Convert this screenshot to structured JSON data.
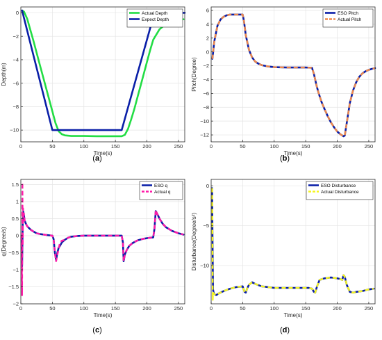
{
  "colors": {
    "green": "#22dd44",
    "blue": "#0a1fa8",
    "orange": "#f08a4b",
    "magenta": "#ff1aa8",
    "yellow": "#f5f51e",
    "axis": "#262626",
    "grid": "#e4e4e4"
  },
  "chart_data": [
    {
      "type": "line",
      "panel_label": "(a)",
      "xlabel": "Time(s)",
      "ylabel": "Depth(m)",
      "xlim": [
        0,
        260
      ],
      "ylim": [
        -11,
        0.5
      ],
      "xticks": [
        0,
        50,
        100,
        150,
        200,
        250
      ],
      "yticks": [
        0,
        -2,
        -4,
        -6,
        -8,
        -10
      ],
      "grid": true,
      "legend": "top-right",
      "series": [
        {
          "name": "Actual Depth",
          "color": "green",
          "style": "solid",
          "x": [
            2,
            5,
            10,
            20,
            30,
            40,
            50,
            55,
            60,
            65,
            70,
            80,
            100,
            120,
            140,
            160,
            165,
            170,
            175,
            180,
            185,
            190,
            195,
            200,
            205,
            210,
            220,
            230,
            240,
            250,
            258
          ],
          "y": [
            0.2,
            0.1,
            -0.5,
            -2.4,
            -4.4,
            -6.4,
            -8.4,
            -9.4,
            -10.1,
            -10.35,
            -10.45,
            -10.5,
            -10.5,
            -10.52,
            -10.52,
            -10.52,
            -10.4,
            -9.9,
            -9.1,
            -8.2,
            -7.2,
            -6.2,
            -5.2,
            -4.2,
            -3.2,
            -2.3,
            -1.4,
            -0.95,
            -0.75,
            -0.62,
            -0.55
          ]
        },
        {
          "name": "Expect Depth",
          "color": "blue",
          "style": "solid",
          "x": [
            2,
            50,
            60,
            160,
            212,
            260
          ],
          "y": [
            0.2,
            -10,
            -10,
            -10,
            0,
            0
          ]
        }
      ]
    },
    {
      "type": "line",
      "panel_label": "(b)",
      "xlabel": "Time(s)",
      "ylabel": "Pitch(Degree)",
      "xlim": [
        0,
        260
      ],
      "ylim": [
        -13,
        6.5
      ],
      "xticks": [
        0,
        50,
        100,
        150,
        200,
        250
      ],
      "yticks": [
        6,
        4,
        2,
        0,
        -2,
        -4,
        -6,
        -8,
        -10,
        -12
      ],
      "grid": true,
      "legend": "top-right",
      "series": [
        {
          "name": "ESO Pitch",
          "color": "blue",
          "style": "solid",
          "x": [
            2,
            5,
            10,
            15,
            20,
            25,
            30,
            35,
            40,
            45,
            50,
            52,
            55,
            60,
            65,
            70,
            75,
            80,
            90,
            100,
            120,
            140,
            150,
            160,
            163,
            167,
            170,
            175,
            180,
            185,
            190,
            195,
            200,
            205,
            210,
            212,
            215,
            220,
            225,
            230,
            235,
            240,
            245,
            250,
            255,
            260
          ],
          "y": [
            -1,
            1.5,
            3.8,
            4.7,
            5.1,
            5.3,
            5.4,
            5.4,
            5.4,
            5.4,
            5.4,
            4.5,
            2.4,
            0.3,
            -0.8,
            -1.4,
            -1.7,
            -1.9,
            -2.1,
            -2.2,
            -2.25,
            -2.25,
            -2.25,
            -2.3,
            -3.2,
            -4.8,
            -5.8,
            -7.2,
            -8.3,
            -9.3,
            -10.2,
            -10.9,
            -11.5,
            -11.9,
            -12.2,
            -12.1,
            -10.3,
            -7.4,
            -5.6,
            -4.4,
            -3.6,
            -3.1,
            -2.8,
            -2.6,
            -2.45,
            -2.35
          ]
        },
        {
          "name": "Actual Pitch",
          "color": "orange",
          "style": "dashed",
          "x": [
            2,
            5,
            10,
            15,
            20,
            25,
            30,
            35,
            40,
            45,
            50,
            52,
            55,
            60,
            65,
            70,
            75,
            80,
            90,
            100,
            120,
            140,
            150,
            160,
            163,
            167,
            170,
            175,
            180,
            185,
            190,
            195,
            200,
            205,
            210,
            212,
            215,
            220,
            225,
            230,
            235,
            240,
            245,
            250,
            255,
            260
          ],
          "y": [
            -1,
            1.5,
            3.8,
            4.7,
            5.1,
            5.3,
            5.4,
            5.4,
            5.4,
            5.4,
            5.4,
            4.5,
            2.4,
            0.3,
            -0.8,
            -1.4,
            -1.7,
            -1.9,
            -2.1,
            -2.2,
            -2.25,
            -2.25,
            -2.25,
            -2.3,
            -3.2,
            -4.8,
            -5.8,
            -7.2,
            -8.3,
            -9.3,
            -10.2,
            -10.9,
            -11.5,
            -11.9,
            -12.2,
            -12.1,
            -10.3,
            -7.4,
            -5.6,
            -4.4,
            -3.6,
            -3.1,
            -2.8,
            -2.6,
            -2.45,
            -2.35
          ]
        }
      ]
    },
    {
      "type": "line",
      "panel_label": "(c)",
      "xlabel": "Time(s)",
      "ylabel": "q(Degree/s)",
      "xlim": [
        0,
        260
      ],
      "ylim": [
        -2,
        1.65
      ],
      "xticks": [
        0,
        50,
        100,
        150,
        200,
        250
      ],
      "yticks": [
        1.5,
        1,
        0.5,
        0,
        -0.5,
        -1,
        -1.5,
        -2
      ],
      "grid": true,
      "legend": "top-right",
      "series": [
        {
          "name": "ESO q",
          "color": "blue",
          "style": "solid",
          "x": [
            1,
            2,
            3,
            4,
            5,
            6,
            8,
            10,
            13,
            16,
            20,
            25,
            30,
            40,
            50,
            52,
            54,
            56,
            58,
            60,
            62,
            65,
            70,
            75,
            80,
            90,
            100,
            120,
            140,
            160,
            162,
            163,
            165,
            168,
            172,
            177,
            185,
            195,
            205,
            210,
            212,
            214,
            216,
            220,
            225,
            230,
            240,
            250,
            258
          ],
          "y": [
            0,
            -0.9,
            0.4,
            0.7,
            0.6,
            0.45,
            0.35,
            0.28,
            0.22,
            0.17,
            0.12,
            0.07,
            0.05,
            0.02,
            0,
            -0.1,
            -0.5,
            -0.72,
            -0.5,
            -0.35,
            -0.3,
            -0.2,
            -0.12,
            -0.06,
            -0.03,
            -0.01,
            0,
            0,
            0,
            0,
            -0.2,
            -0.75,
            -0.55,
            -0.42,
            -0.3,
            -0.22,
            -0.14,
            -0.09,
            -0.06,
            -0.05,
            0.2,
            0.72,
            0.65,
            0.5,
            0.35,
            0.25,
            0.14,
            0.07,
            0.03
          ]
        },
        {
          "name": "Actual q",
          "color": "magenta",
          "style": "dashed",
          "x": [
            1,
            2,
            2.5,
            3,
            3.5,
            4,
            5,
            6,
            8,
            10,
            13,
            16,
            20,
            25,
            30,
            40,
            50,
            52,
            54,
            56,
            58,
            60,
            62,
            65,
            70,
            75,
            80,
            90,
            100,
            120,
            140,
            160,
            162,
            163,
            165,
            168,
            172,
            177,
            185,
            195,
            205,
            210,
            212,
            214,
            216,
            220,
            225,
            230,
            240,
            250,
            258
          ],
          "y": [
            0,
            -1.75,
            1.55,
            -0.3,
            0.8,
            0.5,
            0.65,
            0.45,
            0.35,
            0.28,
            0.22,
            0.17,
            0.12,
            0.07,
            0.05,
            0.02,
            0,
            -0.1,
            -0.5,
            -0.75,
            -0.55,
            -0.4,
            -0.2,
            -0.15,
            -0.12,
            -0.06,
            -0.03,
            -0.01,
            0,
            0,
            0,
            0,
            -0.2,
            -0.75,
            -0.55,
            -0.42,
            -0.3,
            -0.22,
            -0.14,
            -0.09,
            -0.06,
            -0.05,
            0.2,
            0.75,
            0.65,
            0.5,
            0.35,
            0.25,
            0.14,
            0.07,
            0.03
          ]
        }
      ]
    },
    {
      "type": "line",
      "panel_label": "(d)",
      "xlabel": "Time(s)",
      "ylabel": "Disturbance(Degree/s²)",
      "xlim": [
        0,
        260
      ],
      "ylim": [
        -14.8,
        0.8
      ],
      "xticks": [
        0,
        50,
        100,
        150,
        200,
        250
      ],
      "yticks": [
        0,
        -5,
        -10
      ],
      "grid": true,
      "legend": "top-right",
      "series": [
        {
          "name": "ESO Disturbance",
          "color": "blue",
          "style": "solid",
          "x": [
            1.5,
            2,
            3,
            4,
            5,
            8,
            12,
            20,
            30,
            40,
            50,
            53,
            55,
            57,
            60,
            65,
            70,
            80,
            100,
            120,
            140,
            155,
            160,
            163,
            165,
            168,
            172,
            180,
            190,
            200,
            205,
            208,
            210,
            212,
            215,
            220,
            225,
            230,
            240,
            250,
            258
          ],
          "y": [
            -0.3,
            -5,
            -13,
            -13.4,
            -13.6,
            -13.7,
            -13.5,
            -13.2,
            -12.9,
            -12.7,
            -12.6,
            -13.3,
            -13.4,
            -12.9,
            -12.4,
            -12.1,
            -12.3,
            -12.6,
            -12.8,
            -12.8,
            -12.8,
            -12.8,
            -12.9,
            -13.3,
            -13.4,
            -12.6,
            -11.8,
            -11.6,
            -11.5,
            -11.6,
            -11.7,
            -11.8,
            -11.2,
            -11.4,
            -12.4,
            -13.3,
            -13.4,
            -13.3,
            -13.2,
            -13.0,
            -12.9
          ]
        },
        {
          "name": "Actual Disturbance",
          "color": "yellow",
          "style": "dashed",
          "x": [
            1.5,
            2,
            2.5,
            3,
            4,
            5,
            8,
            12,
            20,
            30,
            40,
            50,
            53,
            55,
            57,
            60,
            65,
            70,
            80,
            100,
            120,
            140,
            155,
            160,
            163,
            165,
            168,
            172,
            180,
            190,
            200,
            205,
            208,
            210,
            212,
            215,
            220,
            225,
            230,
            240,
            250,
            258
          ],
          "y": [
            -0.3,
            -5,
            -14.3,
            -13.4,
            -13.5,
            -13.6,
            -13.7,
            -13.5,
            -13.2,
            -12.9,
            -12.7,
            -12.6,
            -13.3,
            -13.4,
            -12.9,
            -12.4,
            -12.1,
            -12.3,
            -12.6,
            -12.8,
            -12.8,
            -12.8,
            -12.8,
            -12.9,
            -13.3,
            -13.4,
            -12.6,
            -11.8,
            -11.6,
            -11.5,
            -11.6,
            -11.7,
            -11.8,
            -11.2,
            -11.4,
            -12.4,
            -13.3,
            -13.4,
            -13.3,
            -13.2,
            -13.0,
            -12.9
          ]
        }
      ]
    }
  ]
}
